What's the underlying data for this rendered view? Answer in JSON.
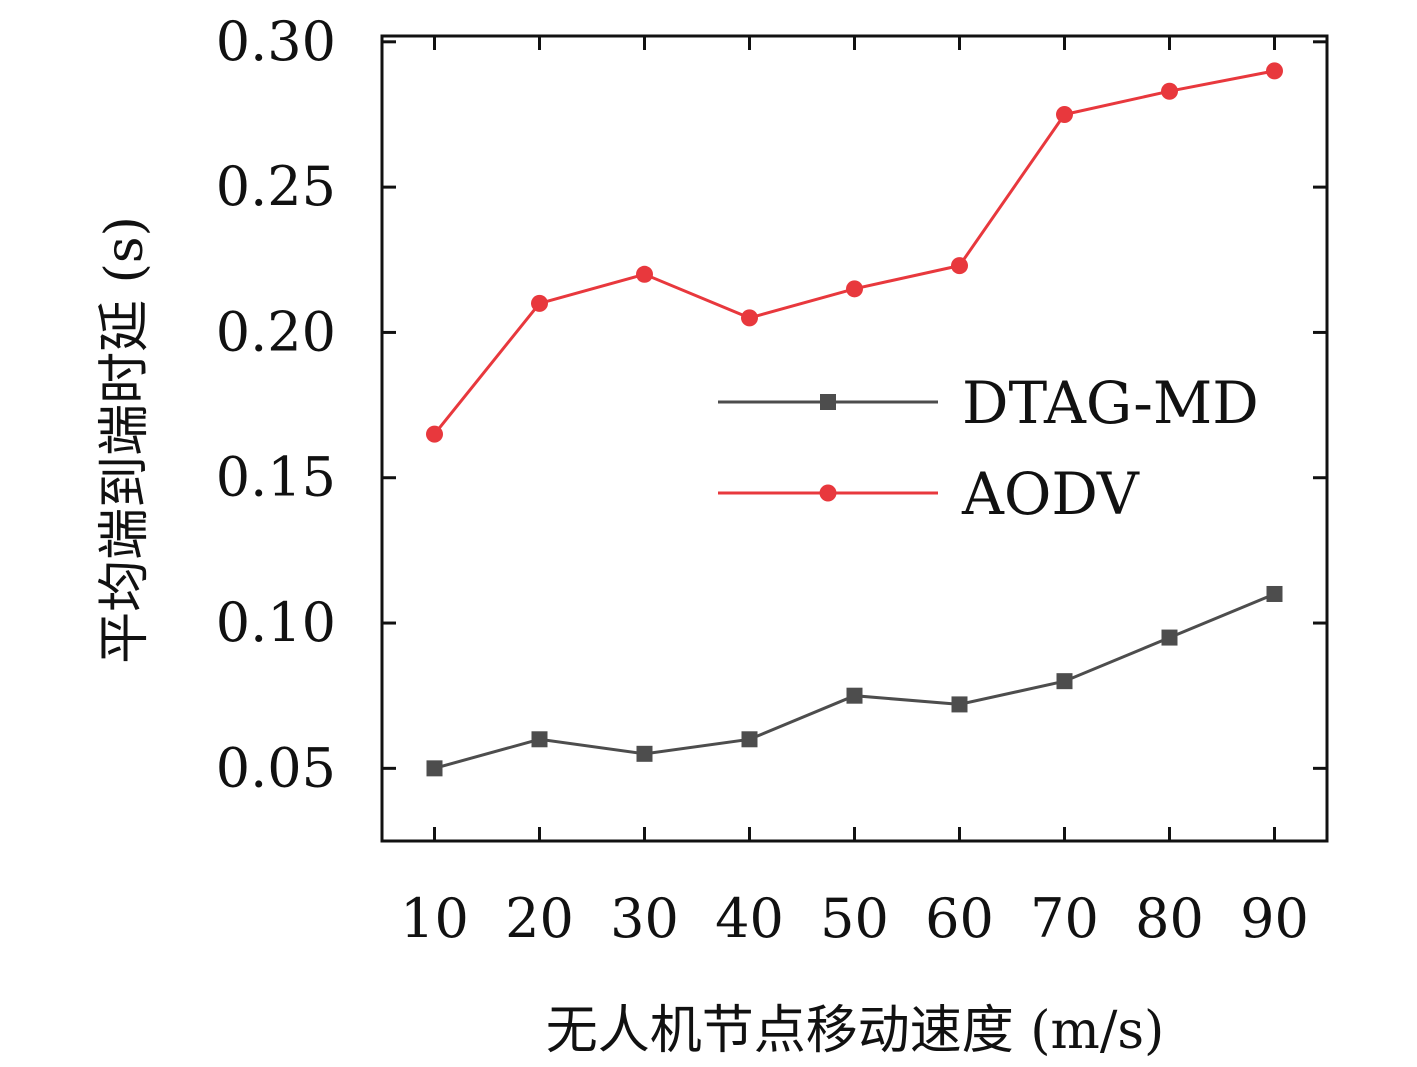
{
  "chart_data": {
    "type": "line",
    "title": "",
    "xlabel": "无人机节点移动速度 (m/s)",
    "ylabel": "平均端到端时延 (s)",
    "x": [
      10,
      20,
      30,
      40,
      50,
      60,
      70,
      80,
      90
    ],
    "x_tick_labels": [
      "10",
      "20",
      "30",
      "40",
      "50",
      "60",
      "70",
      "80",
      "90"
    ],
    "y_ticks": [
      0.05,
      0.1,
      0.15,
      0.2,
      0.25,
      0.3
    ],
    "y_tick_labels": [
      "0.05",
      "0.10",
      "0.15",
      "0.20",
      "0.25",
      "0.30"
    ],
    "xlim": [
      5,
      95
    ],
    "ylim": [
      0.025,
      0.302
    ],
    "grid": false,
    "legend_position": "center-right",
    "series": [
      {
        "name": "DTAG-MD",
        "color": "#4d4d4d",
        "marker": "square",
        "values": [
          0.05,
          0.06,
          0.055,
          0.06,
          0.075,
          0.072,
          0.08,
          0.095,
          0.11
        ]
      },
      {
        "name": "AODV",
        "color": "#e8383d",
        "marker": "circle",
        "values": [
          0.165,
          0.21,
          0.22,
          0.205,
          0.215,
          0.223,
          0.275,
          0.283,
          0.29
        ]
      }
    ]
  }
}
